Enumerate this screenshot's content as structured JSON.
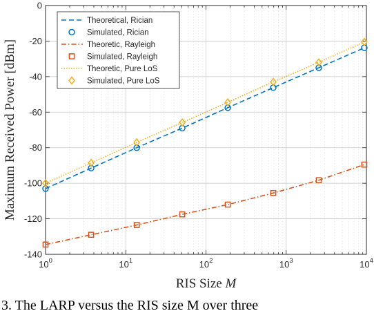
{
  "chart_data": {
    "type": "line",
    "xlabel_prefix": "RIS Size ",
    "xlabel_var": "M",
    "ylabel": "Maximum Received Power [dBm]",
    "x_scale": "log",
    "xlim": [
      1,
      10000
    ],
    "ylim": [
      -140,
      0
    ],
    "x_ticks": [
      {
        "value": 1,
        "base": "10",
        "exp": "0"
      },
      {
        "value": 10,
        "base": "10",
        "exp": "1"
      },
      {
        "value": 100,
        "base": "10",
        "exp": "2"
      },
      {
        "value": 1000,
        "base": "10",
        "exp": "3"
      },
      {
        "value": 10000,
        "base": "10",
        "exp": "4"
      }
    ],
    "y_ticks": [
      0,
      -20,
      -40,
      -60,
      -80,
      -100,
      -120,
      -140
    ],
    "y_tick_labels": [
      "0",
      "-20",
      "-40",
      "-60",
      "-80",
      "-100",
      "-120",
      "-140"
    ],
    "grid": true,
    "legend_position": "top-left",
    "series": [
      {
        "name": "Theoretical, Rician",
        "style": "dashed",
        "color": "#0072BD",
        "marker": "none",
        "x": [
          1,
          3.7,
          13.7,
          50.6,
          187,
          690,
          2549,
          9409
        ],
        "y": [
          -103,
          -91.5,
          -80,
          -69,
          -57.5,
          -46.2,
          -35,
          -23.8
        ]
      },
      {
        "name": "Simulated, Rician",
        "style": "none",
        "color": "#0072BD",
        "marker": "circle",
        "x": [
          1,
          3.7,
          13.7,
          50.6,
          187,
          690,
          2549,
          9409
        ],
        "y": [
          -103,
          -91.5,
          -80,
          -69,
          -57.5,
          -46.2,
          -35,
          -23.8
        ]
      },
      {
        "name": "Theoretic, Rayleigh",
        "style": "dashdot",
        "color": "#D95319",
        "marker": "none",
        "x": [
          1,
          3.7,
          13.7,
          50.6,
          187,
          690,
          2549,
          9409
        ],
        "y": [
          -134.5,
          -129,
          -123.5,
          -117.5,
          -112,
          -105.5,
          -98.3,
          -89.5
        ]
      },
      {
        "name": "Simulated, Rayleigh",
        "style": "none",
        "color": "#D95319",
        "marker": "square",
        "x": [
          1,
          3.7,
          13.7,
          50.6,
          187,
          690,
          2549,
          9409
        ],
        "y": [
          -134.5,
          -129,
          -123.5,
          -117.5,
          -112,
          -105.5,
          -98.3,
          -89.5
        ]
      },
      {
        "name": "Theoretic, Pure LoS",
        "style": "dotted",
        "color": "#EDB120",
        "marker": "none",
        "x": [
          1,
          3.7,
          13.7,
          50.6,
          187,
          690,
          2549,
          9409
        ],
        "y": [
          -100,
          -88.5,
          -77,
          -65.8,
          -54.5,
          -43,
          -32,
          -20.5
        ]
      },
      {
        "name": "Simulated, Pure LoS",
        "style": "none",
        "color": "#EDB120",
        "marker": "diamond",
        "x": [
          1,
          3.7,
          13.7,
          50.6,
          187,
          690,
          2549,
          9409
        ],
        "y": [
          -100,
          -88.5,
          -77,
          -65.8,
          -54.5,
          -43,
          -32,
          -20.5
        ]
      }
    ]
  },
  "caption": {
    "text": "3. The LARP versus the RIS size M over three"
  }
}
